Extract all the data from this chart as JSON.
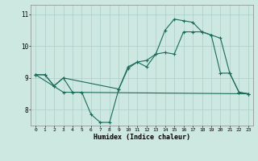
{
  "xlabel": "Humidex (Indice chaleur)",
  "background_color": "#cce8e0",
  "grid_color": "#aacfc8",
  "line_color": "#1a6b5a",
  "xlim": [
    -0.5,
    23.5
  ],
  "ylim": [
    7.5,
    11.3
  ],
  "yticks": [
    8,
    9,
    10,
    11
  ],
  "xticks": [
    0,
    1,
    2,
    3,
    4,
    5,
    6,
    7,
    8,
    9,
    10,
    11,
    12,
    13,
    14,
    15,
    16,
    17,
    18,
    19,
    20,
    21,
    22,
    23
  ],
  "line1_x": [
    0,
    1,
    2,
    3,
    4,
    5,
    6,
    7,
    8,
    9,
    10,
    11,
    12,
    13,
    14,
    15,
    16,
    17,
    18,
    19,
    20,
    21,
    22,
    23
  ],
  "line1_y": [
    9.1,
    9.1,
    8.75,
    9.0,
    8.55,
    8.55,
    7.85,
    7.6,
    7.6,
    8.65,
    9.35,
    9.5,
    9.35,
    9.75,
    9.8,
    9.75,
    10.45,
    10.45,
    10.45,
    10.35,
    9.15,
    9.15,
    8.55,
    8.5
  ],
  "line2_x": [
    0,
    1,
    2,
    3,
    9,
    10,
    11,
    12,
    13,
    14,
    15,
    16,
    17,
    18,
    19,
    20,
    21,
    22,
    23
  ],
  "line2_y": [
    9.1,
    9.1,
    8.75,
    9.0,
    8.65,
    9.3,
    9.5,
    9.55,
    9.75,
    10.5,
    10.85,
    10.8,
    10.75,
    10.45,
    10.35,
    10.25,
    9.15,
    8.55,
    8.5
  ],
  "line3_x": [
    0,
    3,
    23
  ],
  "line3_y": [
    9.1,
    8.55,
    8.5
  ]
}
